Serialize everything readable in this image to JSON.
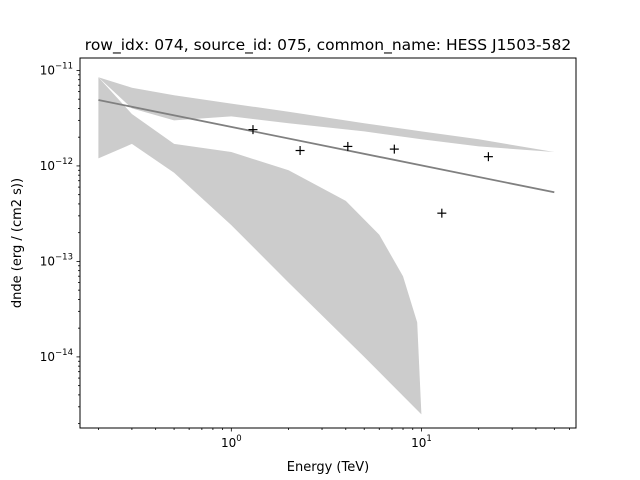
{
  "chart_data": {
    "type": "line",
    "title": "row_idx: 074, source_id: 075, common_name: HESS J1503-582",
    "xlabel": "Energy (TeV)",
    "ylabel": "dnde (erg / (cm2 s))",
    "xscale": "log",
    "yscale": "log",
    "xlim": [
      0.16,
      65
    ],
    "ylim": [
      1.8e-15,
      1.35e-11
    ],
    "grid": false,
    "x_ticks": [
      {
        "value": 1,
        "base": "10",
        "exp": "0"
      },
      {
        "value": 10,
        "base": "10",
        "exp": "1"
      }
    ],
    "y_ticks": [
      {
        "value": 1e-11,
        "base": "10",
        "exp": "−11"
      },
      {
        "value": 1e-12,
        "base": "10",
        "exp": "−12"
      },
      {
        "value": 1e-13,
        "base": "10",
        "exp": "−13"
      },
      {
        "value": 1e-14,
        "base": "10",
        "exp": "−14"
      }
    ],
    "series": [
      {
        "kind": "band",
        "color": "#cccccc",
        "upper": [
          [
            0.2,
            8.5e-12
          ],
          [
            0.3,
            6.6e-12
          ],
          [
            0.5,
            5.5e-12
          ],
          [
            1.0,
            4.5e-12
          ],
          [
            2.0,
            3.7e-12
          ],
          [
            5.0,
            2.8e-12
          ],
          [
            10.0,
            2.3e-12
          ],
          [
            20.0,
            1.9e-12
          ],
          [
            50.0,
            1.4e-12
          ]
        ],
        "lower": [
          [
            50.0,
            1.4e-12
          ],
          [
            20.0,
            1.6e-12
          ],
          [
            10.0,
            1.9e-12
          ],
          [
            5.0,
            2.3e-12
          ],
          [
            2.0,
            2.8e-12
          ],
          [
            1.0,
            3.3e-12
          ],
          [
            0.5,
            3e-12
          ],
          [
            0.3,
            4e-12
          ],
          [
            0.2,
            8.5e-12
          ]
        ]
      },
      {
        "kind": "band",
        "color": "#cccccc",
        "upper": [
          [
            0.2,
            8.5e-12
          ],
          [
            0.3,
            3.5e-12
          ],
          [
            0.5,
            1.7e-12
          ],
          [
            1.0,
            1.4e-12
          ],
          [
            2.0,
            9e-13
          ],
          [
            4.0,
            4.3e-13
          ],
          [
            6.0,
            1.9e-13
          ],
          [
            8.0,
            7e-14
          ],
          [
            9.5,
            2.3e-14
          ],
          [
            10.0,
            2.5e-15
          ]
        ],
        "lower": [
          [
            10.0,
            2.5e-15
          ],
          [
            5.0,
            1e-14
          ],
          [
            2.0,
            6e-14
          ],
          [
            1.0,
            2.4e-13
          ],
          [
            0.5,
            8.5e-13
          ],
          [
            0.3,
            1.7e-12
          ],
          [
            0.2,
            1.2e-12
          ]
        ]
      },
      {
        "kind": "line",
        "color": "#808080",
        "points": [
          [
            0.2,
            4.9e-12
          ],
          [
            50.0,
            5.3e-13
          ]
        ]
      },
      {
        "kind": "points",
        "color": "#000000",
        "marker": "+",
        "points": [
          [
            1.3,
            2.4e-12
          ],
          [
            2.3,
            1.45e-12
          ],
          [
            4.1,
            1.6e-12
          ],
          [
            7.2,
            1.5e-12
          ],
          [
            12.8,
            3.2e-13
          ],
          [
            22.5,
            1.25e-12
          ]
        ]
      }
    ]
  }
}
